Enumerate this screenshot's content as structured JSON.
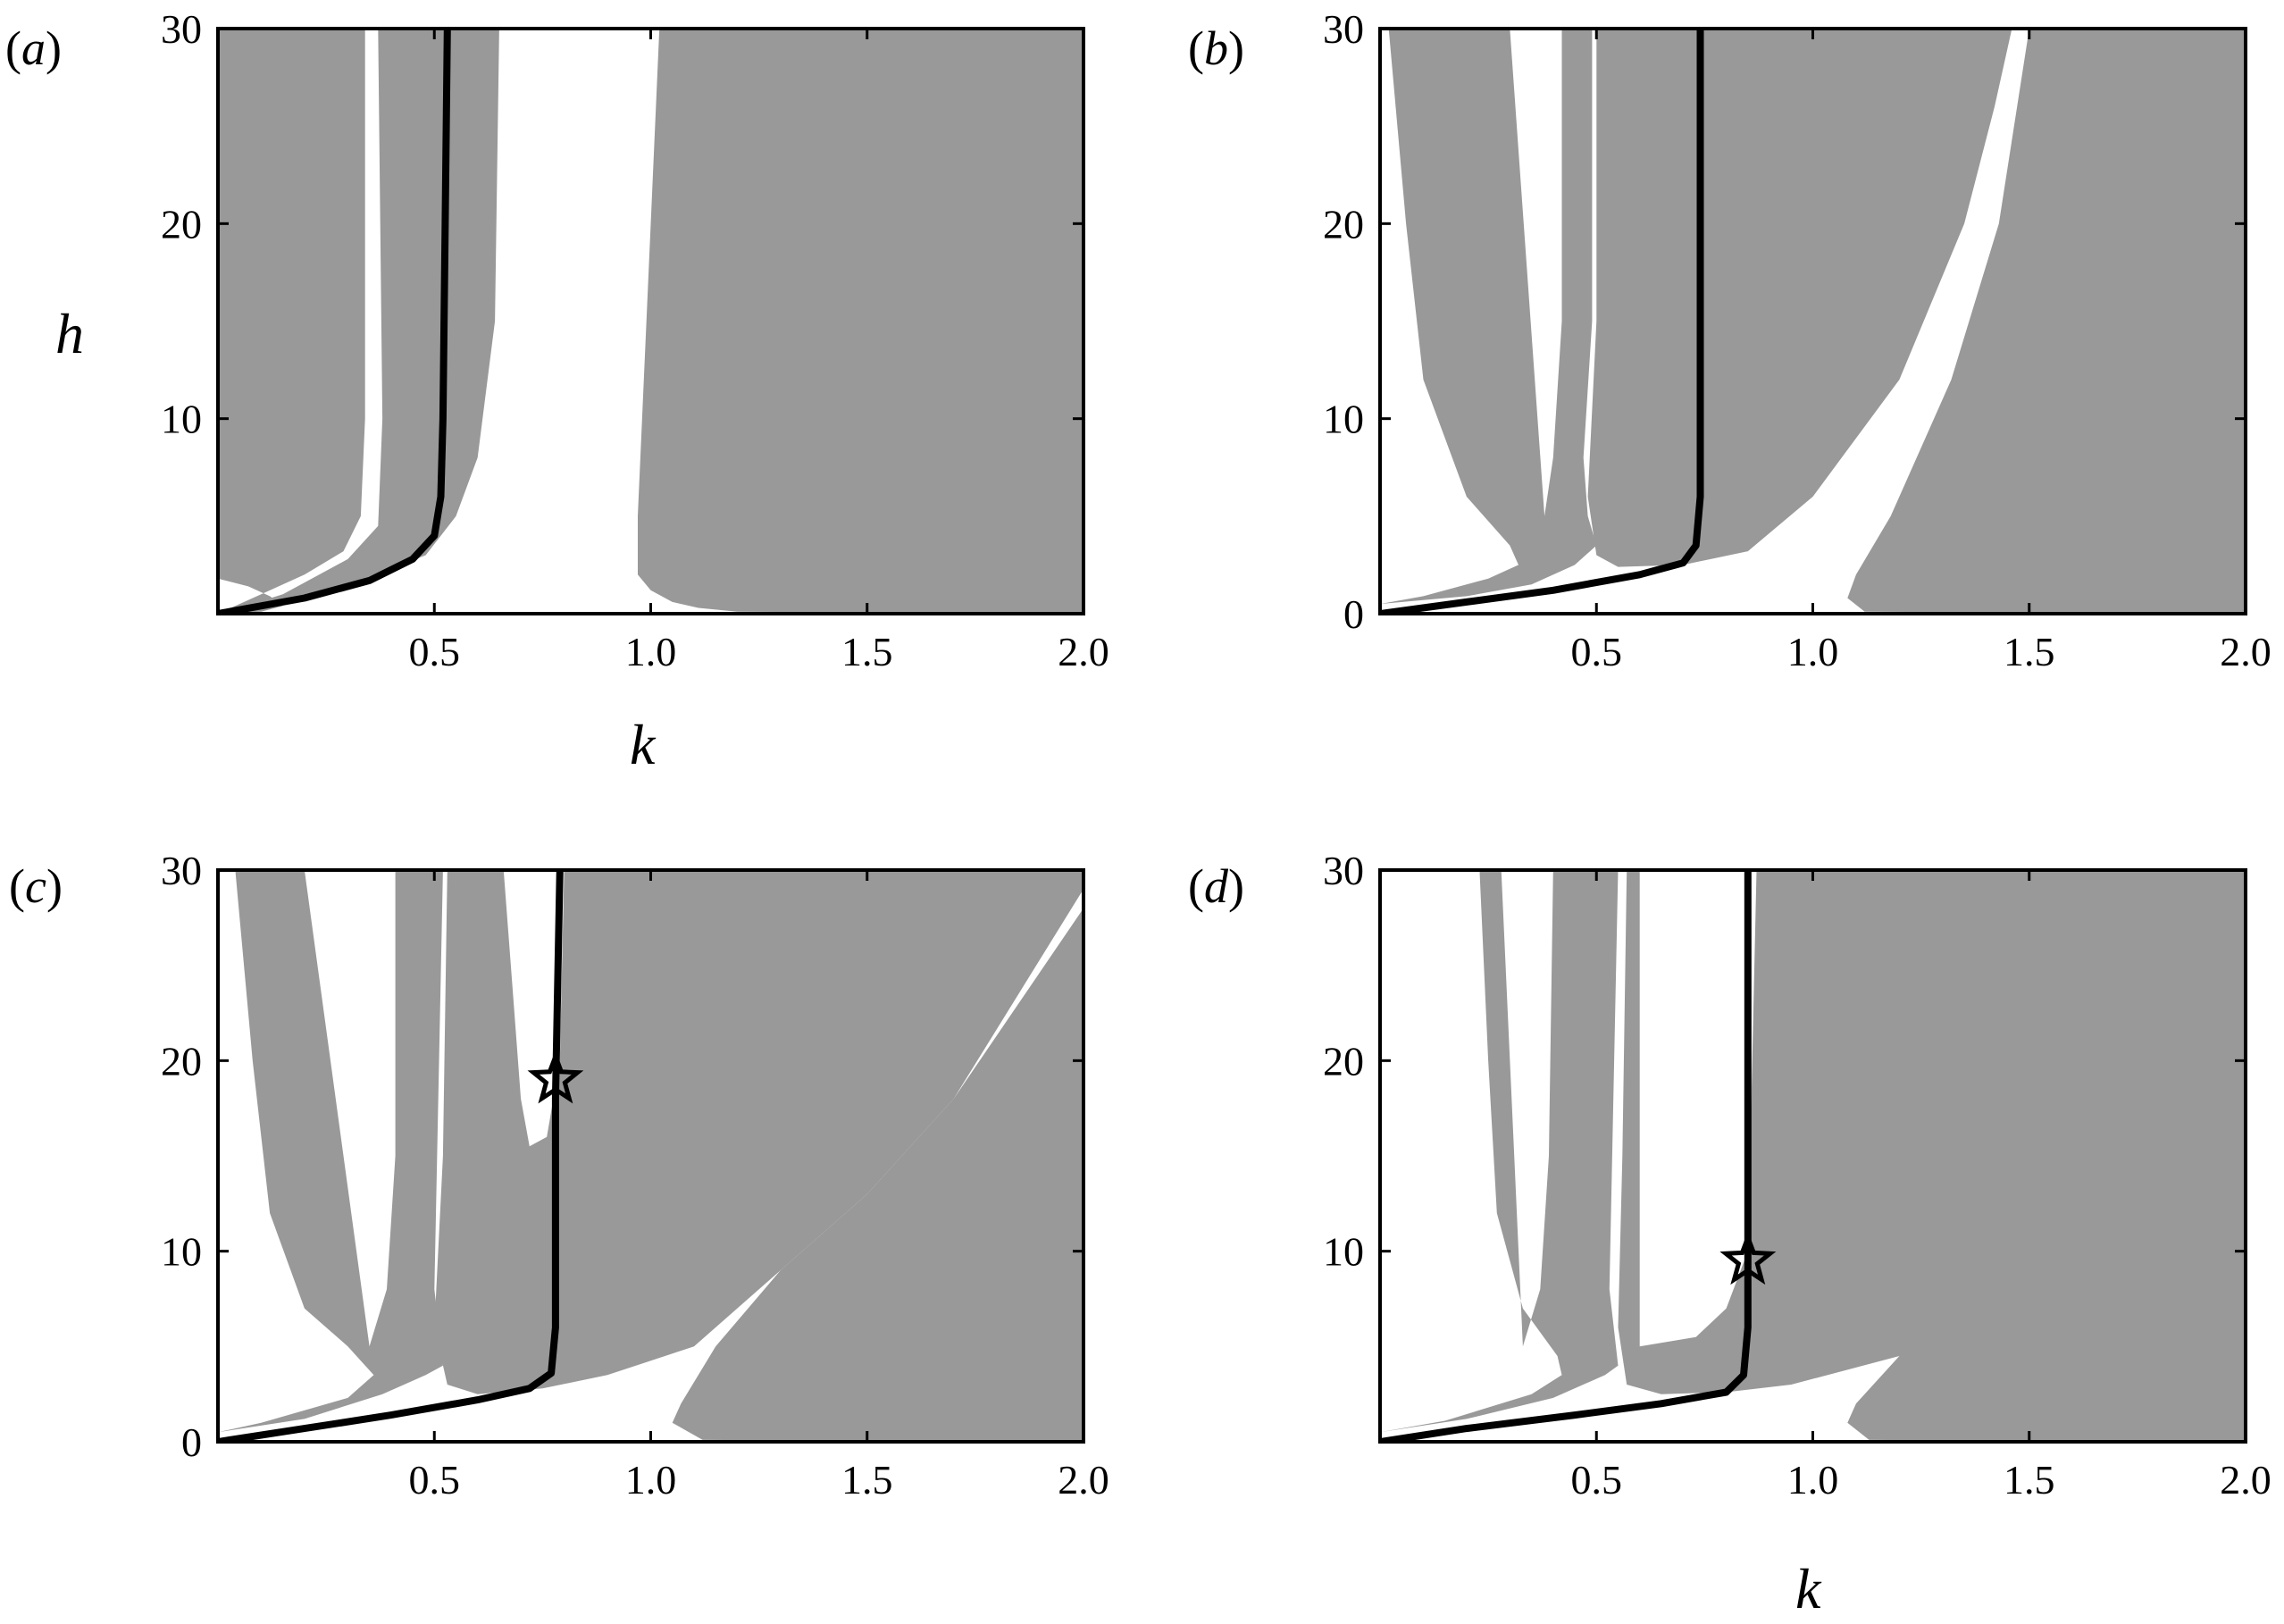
{
  "colors": {
    "stable_region": "#999999",
    "background": "#ffffff",
    "curve": "#000000"
  },
  "chart_data": [
    {
      "id": "a",
      "type": "area",
      "panel_label": "a",
      "xlabel": "k",
      "ylabel": "h",
      "xlim": [
        0,
        2.0
      ],
      "ylim": [
        0,
        30
      ],
      "x_ticks": [
        0.5,
        1.0,
        1.5,
        2.0
      ],
      "x_tick_labels": [
        "0.5",
        "1.0",
        "1.5",
        "2.0"
      ],
      "y_ticks": [
        10,
        20,
        30
      ],
      "y_tick_labels": [
        "10",
        "20",
        "30"
      ],
      "shaded_regions": [
        [
          [
            0,
            0
          ],
          [
            0.05,
            0.05
          ],
          [
            0.1,
            0.1
          ],
          [
            0.15,
            0.4
          ],
          [
            0.12,
            0.9
          ],
          [
            0.07,
            1.4
          ],
          [
            0,
            1.8
          ],
          [
            0,
            30
          ],
          [
            0.34,
            30
          ],
          [
            0.34,
            10
          ],
          [
            0.33,
            5
          ],
          [
            0.29,
            3.2
          ],
          [
            0.2,
            2
          ],
          [
            0.1,
            1
          ],
          [
            0.03,
            0.3
          ]
        ],
        [
          [
            0.02,
            0.1
          ],
          [
            0.15,
            1
          ],
          [
            0.3,
            2.8
          ],
          [
            0.37,
            4.5
          ],
          [
            0.38,
            10
          ],
          [
            0.37,
            30
          ],
          [
            0.65,
            30
          ],
          [
            0.64,
            15
          ],
          [
            0.6,
            8
          ],
          [
            0.55,
            5
          ],
          [
            0.48,
            3
          ],
          [
            0.3,
            1.4
          ],
          [
            0.1,
            0.3
          ]
        ],
        [
          [
            1.02,
            30
          ],
          [
            0.99,
            15
          ],
          [
            0.97,
            5
          ],
          [
            0.97,
            2
          ],
          [
            1.0,
            1.2
          ],
          [
            1.05,
            0.6
          ],
          [
            1.11,
            0.3
          ],
          [
            1.2,
            0.1
          ],
          [
            2.0,
            0
          ],
          [
            2.0,
            30
          ]
        ]
      ],
      "curves": [
        {
          "points": [
            [
              0,
              0
            ],
            [
              0.2,
              0.8
            ],
            [
              0.35,
              1.7
            ],
            [
              0.45,
              2.8
            ],
            [
              0.5,
              4
            ],
            [
              0.515,
              6
            ],
            [
              0.52,
              10
            ],
            [
              0.525,
              20
            ],
            [
              0.53,
              30
            ]
          ]
        }
      ],
      "markers": []
    },
    {
      "id": "b",
      "type": "area",
      "panel_label": "b",
      "xlabel": "",
      "ylabel": "",
      "xlim": [
        0,
        2.0
      ],
      "ylim": [
        0,
        30
      ],
      "x_ticks": [
        0.5,
        1.0,
        1.5,
        2.0
      ],
      "x_tick_labels": [
        "0.5",
        "1.0",
        "1.5",
        "2.0"
      ],
      "y_ticks": [
        0,
        10,
        20,
        30
      ],
      "y_tick_labels": [
        "0",
        "10",
        "20",
        "30"
      ],
      "shaded_regions": [
        [
          [
            0.02,
            30
          ],
          [
            0.06,
            20
          ],
          [
            0.1,
            12
          ],
          [
            0.2,
            6
          ],
          [
            0.3,
            3.5
          ],
          [
            0.32,
            2.5
          ],
          [
            0.25,
            1.8
          ],
          [
            0.1,
            0.9
          ],
          [
            0,
            0.5
          ],
          [
            0.2,
            0.9
          ],
          [
            0.35,
            1.5
          ],
          [
            0.45,
            2.5
          ],
          [
            0.5,
            3.5
          ],
          [
            0.48,
            5
          ],
          [
            0.47,
            8
          ],
          [
            0.49,
            15
          ],
          [
            0.49,
            30
          ],
          [
            0.42,
            30
          ],
          [
            0.42,
            15
          ],
          [
            0.4,
            8
          ],
          [
            0.38,
            5
          ],
          [
            0.3,
            30
          ]
        ],
        [
          [
            0.5,
            30
          ],
          [
            0.5,
            15
          ],
          [
            0.48,
            6
          ],
          [
            0.5,
            3
          ],
          [
            0.55,
            2.4
          ],
          [
            0.7,
            2.5
          ],
          [
            0.85,
            3.2
          ],
          [
            1.0,
            6
          ],
          [
            1.2,
            12
          ],
          [
            1.35,
            20
          ],
          [
            1.42,
            26
          ],
          [
            1.46,
            30
          ]
        ],
        [
          [
            1.5,
            30
          ],
          [
            1.43,
            20
          ],
          [
            1.32,
            12
          ],
          [
            1.18,
            5
          ],
          [
            1.1,
            2
          ],
          [
            1.08,
            0.8
          ],
          [
            1.12,
            0.1
          ],
          [
            2.0,
            0
          ],
          [
            2.0,
            30
          ]
        ]
      ],
      "curves": [
        {
          "points": [
            [
              0,
              0
            ],
            [
              0.2,
              0.6
            ],
            [
              0.4,
              1.2
            ],
            [
              0.6,
              2
            ],
            [
              0.7,
              2.6
            ],
            [
              0.73,
              3.5
            ],
            [
              0.74,
              6
            ],
            [
              0.74,
              15
            ],
            [
              0.74,
              30
            ]
          ]
        }
      ],
      "markers": []
    },
    {
      "id": "c",
      "type": "area",
      "panel_label": "c",
      "xlabel": "",
      "ylabel": "",
      "xlim": [
        0,
        2.0
      ],
      "ylim": [
        0,
        30
      ],
      "x_ticks": [
        0.5,
        1.0,
        1.5,
        2.0
      ],
      "x_tick_labels": [
        "0.5",
        "1.0",
        "1.5",
        "2.0"
      ],
      "y_ticks": [
        0,
        10,
        20,
        30
      ],
      "y_tick_labels": [
        "0",
        "10",
        "20",
        "30"
      ],
      "shaded_regions": [
        [
          [
            0.04,
            30
          ],
          [
            0.08,
            20
          ],
          [
            0.12,
            12
          ],
          [
            0.2,
            7
          ],
          [
            0.3,
            5
          ],
          [
            0.36,
            3.5
          ],
          [
            0.3,
            2.3
          ],
          [
            0.1,
            1
          ],
          [
            0,
            0.5
          ],
          [
            0.2,
            1.2
          ],
          [
            0.38,
            2.5
          ],
          [
            0.48,
            3.5
          ],
          [
            0.52,
            4
          ],
          [
            0.5,
            8
          ],
          [
            0.52,
            30
          ],
          [
            0.41,
            30
          ],
          [
            0.41,
            15
          ],
          [
            0.39,
            8
          ],
          [
            0.35,
            5
          ],
          [
            0.2,
            30
          ]
        ],
        [
          [
            0.53,
            30
          ],
          [
            0.52,
            15
          ],
          [
            0.5,
            6
          ],
          [
            0.53,
            3
          ],
          [
            0.6,
            2.5
          ],
          [
            0.75,
            2.8
          ],
          [
            0.9,
            3.5
          ],
          [
            1.1,
            5
          ],
          [
            1.3,
            9
          ],
          [
            1.5,
            13
          ],
          [
            1.7,
            18
          ],
          [
            2.0,
            29
          ],
          [
            2.0,
            30
          ],
          [
            0.8,
            30
          ],
          [
            0.79,
            20
          ],
          [
            0.76,
            16
          ],
          [
            0.72,
            15.5
          ],
          [
            0.7,
            18
          ],
          [
            0.68,
            24
          ],
          [
            0.66,
            30
          ]
        ],
        [
          [
            2.0,
            28
          ],
          [
            1.7,
            18
          ],
          [
            1.5,
            13
          ],
          [
            1.3,
            9
          ],
          [
            1.15,
            5
          ],
          [
            1.07,
            2
          ],
          [
            1.05,
            1
          ],
          [
            1.12,
            0.1
          ],
          [
            2.0,
            0
          ]
        ]
      ],
      "curves": [
        {
          "points": [
            [
              0,
              0
            ],
            [
              0.2,
              0.7
            ],
            [
              0.4,
              1.4
            ],
            [
              0.6,
              2.2
            ],
            [
              0.72,
              2.8
            ],
            [
              0.77,
              3.6
            ],
            [
              0.78,
              6
            ],
            [
              0.78,
              18
            ],
            [
              0.79,
              30
            ]
          ]
        }
      ],
      "markers": [
        {
          "label": "star",
          "x": 0.78,
          "y": 19
        }
      ]
    },
    {
      "id": "d",
      "type": "area",
      "panel_label": "d",
      "xlabel": "k",
      "ylabel": "",
      "xlim": [
        0,
        2.0
      ],
      "ylim": [
        0,
        30
      ],
      "x_ticks": [
        0.5,
        1.0,
        1.5,
        2.0
      ],
      "x_tick_labels": [
        "0.5",
        "1.0",
        "1.5",
        "2.0"
      ],
      "y_ticks": [
        10,
        20,
        30
      ],
      "y_tick_labels": [
        "10",
        "20",
        "30"
      ],
      "shaded_regions": [
        [
          [
            0.23,
            30
          ],
          [
            0.25,
            20
          ],
          [
            0.27,
            12
          ],
          [
            0.33,
            7
          ],
          [
            0.41,
            4.5
          ],
          [
            0.42,
            3.5
          ],
          [
            0.35,
            2.5
          ],
          [
            0.15,
            1.1
          ],
          [
            0,
            0.5
          ],
          [
            0.2,
            1.2
          ],
          [
            0.4,
            2.3
          ],
          [
            0.52,
            3.5
          ],
          [
            0.55,
            4
          ],
          [
            0.53,
            8
          ],
          [
            0.55,
            30
          ],
          [
            0.4,
            30
          ],
          [
            0.39,
            15
          ],
          [
            0.37,
            8
          ],
          [
            0.33,
            5
          ],
          [
            0.28,
            30
          ]
        ],
        [
          [
            0.57,
            30
          ],
          [
            0.56,
            15
          ],
          [
            0.55,
            6
          ],
          [
            0.57,
            3
          ],
          [
            0.65,
            2.5
          ],
          [
            0.8,
            2.6
          ],
          [
            0.95,
            3
          ],
          [
            1.2,
            4.5
          ],
          [
            1.5,
            7
          ],
          [
            1.8,
            10.5
          ],
          [
            2.0,
            13.5
          ],
          [
            2.0,
            30
          ],
          [
            0.87,
            30
          ],
          [
            0.86,
            20
          ],
          [
            0.85,
            10
          ],
          [
            0.8,
            7
          ],
          [
            0.73,
            5.5
          ],
          [
            0.6,
            5
          ],
          [
            0.6,
            30
          ]
        ],
        [
          [
            2.0,
            14
          ],
          [
            1.7,
            10
          ],
          [
            1.4,
            7
          ],
          [
            1.2,
            4.5
          ],
          [
            1.1,
            2
          ],
          [
            1.08,
            1
          ],
          [
            1.13,
            0.1
          ],
          [
            2.0,
            0
          ]
        ]
      ],
      "curves": [
        {
          "points": [
            [
              0,
              0
            ],
            [
              0.2,
              0.7
            ],
            [
              0.45,
              1.4
            ],
            [
              0.65,
              2
            ],
            [
              0.8,
              2.6
            ],
            [
              0.84,
              3.5
            ],
            [
              0.85,
              6
            ],
            [
              0.85,
              15
            ],
            [
              0.85,
              30
            ]
          ]
        }
      ],
      "markers": [
        {
          "label": "star",
          "x": 0.85,
          "y": 9.5
        }
      ]
    }
  ]
}
